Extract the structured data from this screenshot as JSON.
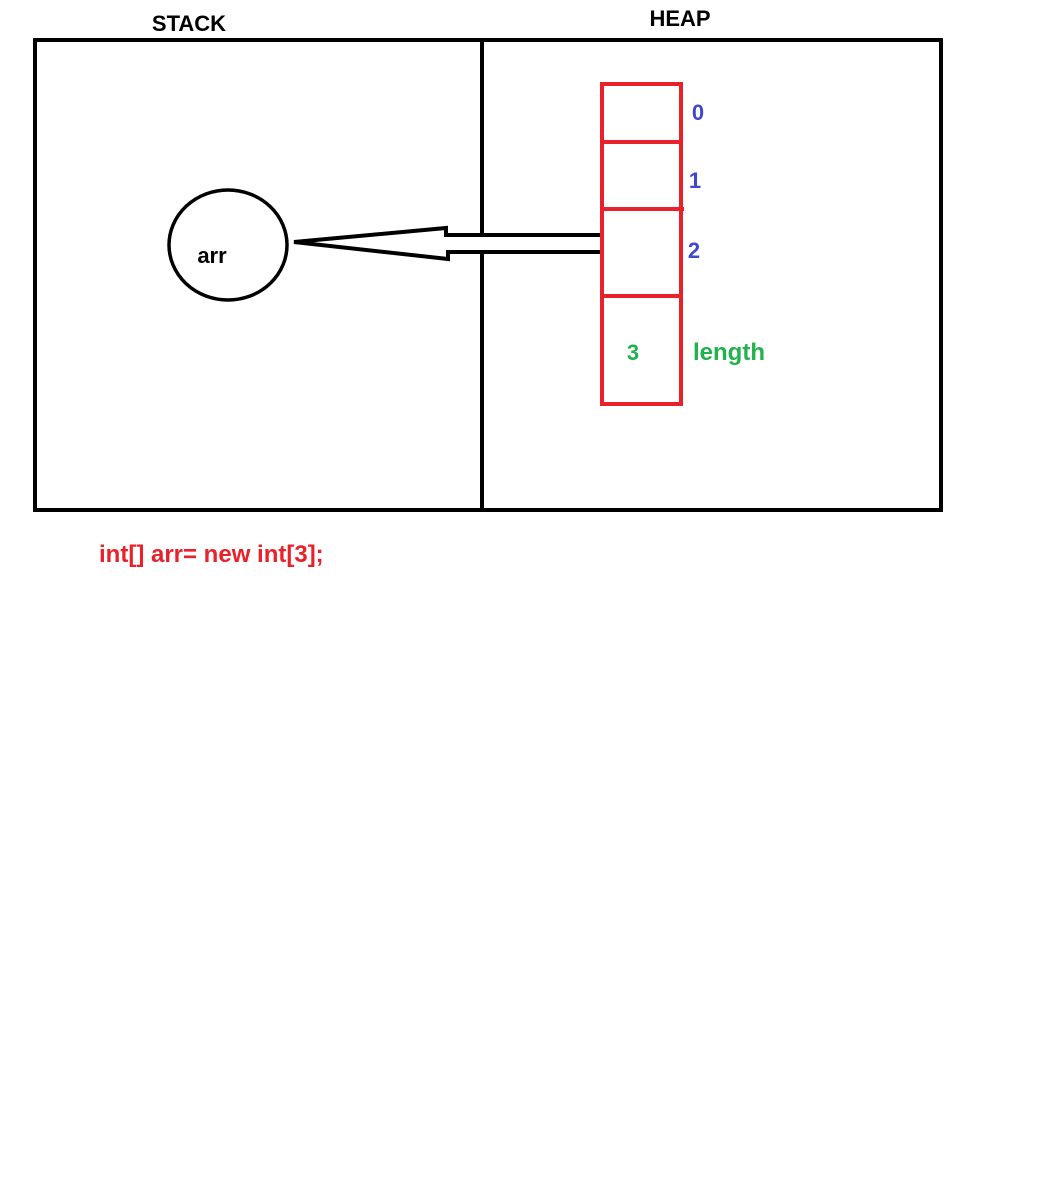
{
  "stack_label": "STACK",
  "heap_label": "HEAP",
  "variable": {
    "name": "arr"
  },
  "array": {
    "indices": [
      "0",
      "1",
      "2"
    ],
    "length_value": "3",
    "length_label": "length"
  },
  "code": "int[] arr= new int[3];",
  "colors": {
    "stroke": "#000000",
    "array_border": "#e8212a",
    "index_text": "#3f48cc",
    "length_text": "#22b14c",
    "code_text": "#e8212a"
  }
}
